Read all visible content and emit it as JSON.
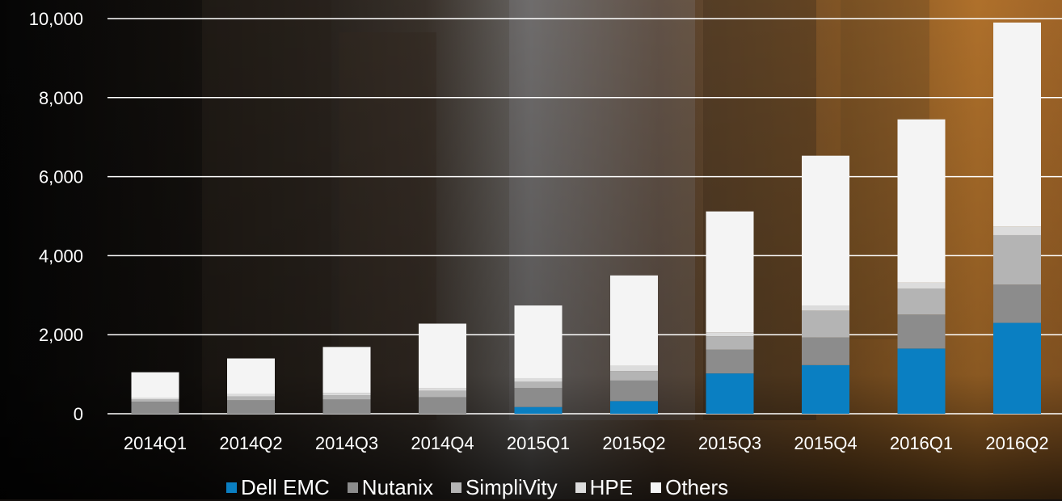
{
  "chart_data": {
    "type": "stacked-bar",
    "categories": [
      "2014Q1",
      "2014Q2",
      "2014Q3",
      "2014Q4",
      "2015Q1",
      "2015Q2",
      "2015Q3",
      "2015Q4",
      "2016Q1",
      "2016Q2"
    ],
    "series": [
      {
        "name": "Dell EMC",
        "color": "#0a7fc2",
        "values": [
          0,
          0,
          0,
          0,
          170,
          320,
          1020,
          1230,
          1650,
          2300
        ]
      },
      {
        "name": "Nutanix",
        "color": "#8c8c8c",
        "values": [
          300,
          340,
          360,
          420,
          480,
          520,
          600,
          700,
          860,
          970
        ]
      },
      {
        "name": "SimpliVity",
        "color": "#b4b4b4",
        "values": [
          60,
          100,
          110,
          160,
          160,
          240,
          340,
          680,
          660,
          1250
        ]
      },
      {
        "name": "HPE",
        "color": "#dcdcdc",
        "values": [
          40,
          60,
          60,
          60,
          90,
          130,
          100,
          130,
          150,
          220
        ]
      },
      {
        "name": "Others",
        "color": "#f4f4f4",
        "values": [
          650,
          900,
          1160,
          1640,
          1840,
          2290,
          3060,
          3790,
          4130,
          5160
        ]
      }
    ],
    "yticks": [
      "0",
      "2,000",
      "4,000",
      "6,000",
      "8,000",
      "10,000"
    ],
    "ylim": [
      0,
      10000
    ],
    "grid": true,
    "legend_position": "bottom"
  }
}
